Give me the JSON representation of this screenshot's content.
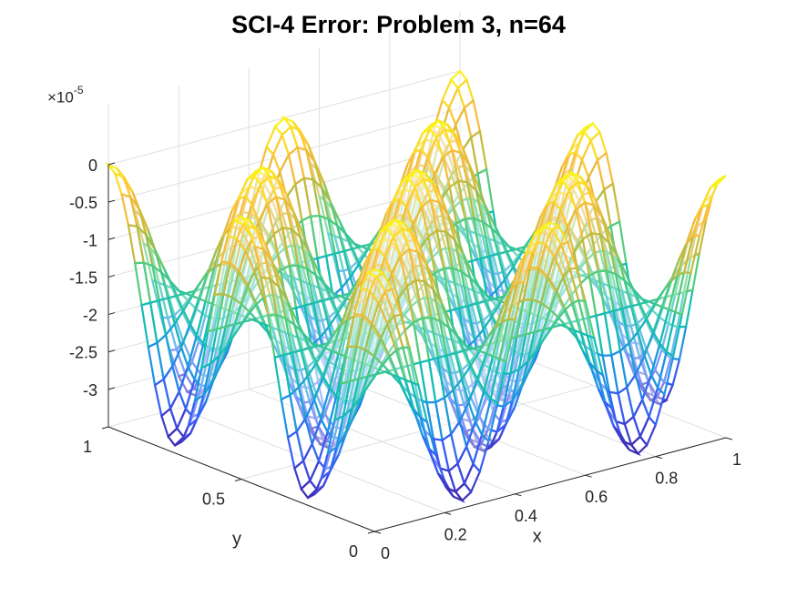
{
  "chart_data": {
    "type": "surface",
    "title": "SCI-4 Error: Problem 3, n=64",
    "xlabel": "x",
    "ylabel": "y",
    "zlabel": "",
    "z_exponent_label": {
      "base": "×10",
      "power": "-5"
    },
    "xlim": [
      0,
      1
    ],
    "ylim": [
      0,
      1
    ],
    "zlim": [
      -3.5,
      0
    ],
    "x_ticks": [
      "0",
      "0.2",
      "0.4",
      "0.6",
      "0.8",
      "1"
    ],
    "y_ticks": [
      "0",
      "0.5",
      "1"
    ],
    "z_ticks": [
      "0",
      "-0.5",
      "-1",
      "-1.5",
      "-2",
      "-2.5",
      "-3"
    ],
    "grid": true,
    "colormap": "parula",
    "colormap_colors": [
      "#3e26a8",
      "#3b56f6",
      "#1f93e4",
      "#13bcb5",
      "#52cc80",
      "#c4ba3c",
      "#fdbd3c",
      "#f9fb14"
    ],
    "surface": {
      "grid_points": 64,
      "approx_formula": "z ≈ -1.7e-5 * (1 + cos(4πx)·cos(4πy)) units ×1e-5; maxima ≈ 0 at corners/centers, minima ≈ -3.4",
      "amplitude": 1.7,
      "offset": -1.7,
      "frequency_x": 2,
      "frequency_y": 2
    }
  }
}
